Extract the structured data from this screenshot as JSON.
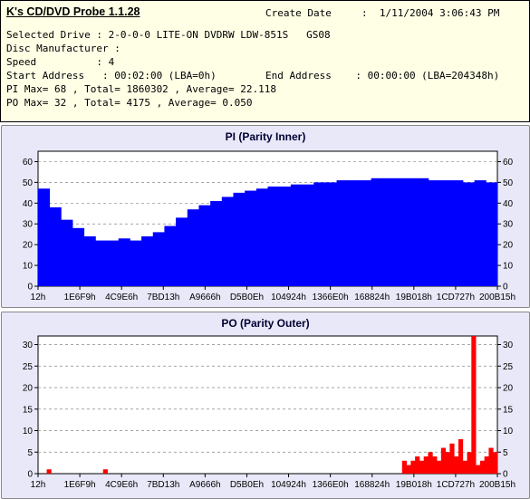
{
  "info": {
    "app_title": "K's CD/DVD Probe 1.1.28",
    "create_date_label": "Create Date",
    "create_date_value": ":  1/11/2004 3:06:43 PM",
    "line1": "Selected Drive : 2-0-0-0 LITE-ON DVDRW LDW-851S   GS08",
    "line2": "Disc Manufacturer :",
    "line3": "Speed          : 4",
    "line4_left": "Start Address   : 00:02:00 (LBA=0h)",
    "line4_right": "End Address    : 00:00:00 (LBA=204348h)",
    "line5": "PI Max= 68 , Total= 1860302 , Average= 22.118",
    "line6": "PO Max= 32 , Total= 4175 , Average= 0.050"
  },
  "colors": {
    "pi": "#0000ff",
    "po": "#ff0000",
    "panel": "#e8e8f8",
    "info_bg": "#ffffe6",
    "grid": "#888888"
  },
  "chart_data": [
    {
      "type": "bar",
      "title": "PI (Parity Inner)",
      "xlabel": "",
      "ylabel": "",
      "ylim": [
        0,
        65
      ],
      "yticks": [
        0,
        10,
        20,
        30,
        40,
        50,
        60
      ],
      "xticks": [
        "12h",
        "1E6F9h",
        "4C9E6h",
        "7BD13h",
        "A9666h",
        "D5B0Eh",
        "104924h",
        "1366E0h",
        "168824h",
        "19B018h",
        "1CD727h",
        "200B15h"
      ],
      "grid": true,
      "series": [
        {
          "values": [
            47,
            38,
            32,
            28,
            24,
            22,
            22,
            23,
            22,
            24,
            26,
            29,
            33,
            37,
            39,
            41,
            43,
            45,
            46,
            47,
            48,
            48,
            49,
            49,
            50,
            50,
            51,
            51,
            51,
            52,
            52,
            52,
            52,
            52,
            51,
            51,
            51,
            50,
            51,
            50
          ],
          "max": 68
        }
      ]
    },
    {
      "type": "bar",
      "title": "PO (Parity Outer)",
      "xlabel": "",
      "ylabel": "",
      "ylim": [
        0,
        32
      ],
      "yticks": [
        0,
        5,
        10,
        15,
        20,
        25,
        30
      ],
      "xticks": [
        "12h",
        "1E6F9h",
        "4C9E6h",
        "7BD13h",
        "A9666h",
        "D5B0Eh",
        "104924h",
        "1366E0h",
        "168824h",
        "19B018h",
        "1CD727h",
        "200B15h"
      ],
      "grid": true,
      "series": [
        {
          "values": [
            0,
            0,
            1,
            0,
            0,
            0,
            0,
            0,
            0,
            0,
            0,
            0,
            0,
            0,
            0,
            1,
            0,
            0,
            0,
            0,
            0,
            0,
            0,
            0,
            0,
            0,
            0,
            0,
            0,
            0,
            0,
            0,
            0,
            0,
            0,
            0,
            0,
            0,
            0,
            0,
            0,
            0,
            0,
            0,
            0,
            0,
            0,
            0,
            0,
            0,
            0,
            0,
            0,
            0,
            0,
            0,
            0,
            0,
            0,
            0,
            0,
            0,
            0,
            0,
            0,
            0,
            0,
            0,
            0,
            0,
            0,
            0,
            0,
            0,
            0,
            0,
            0,
            0,
            0,
            0,
            0,
            0,
            0,
            0,
            3,
            2,
            3,
            4,
            3,
            4,
            5,
            4,
            3,
            6,
            5,
            7,
            4,
            8,
            3,
            5,
            32,
            2,
            3,
            4,
            6,
            5
          ],
          "max": 32
        }
      ]
    }
  ]
}
